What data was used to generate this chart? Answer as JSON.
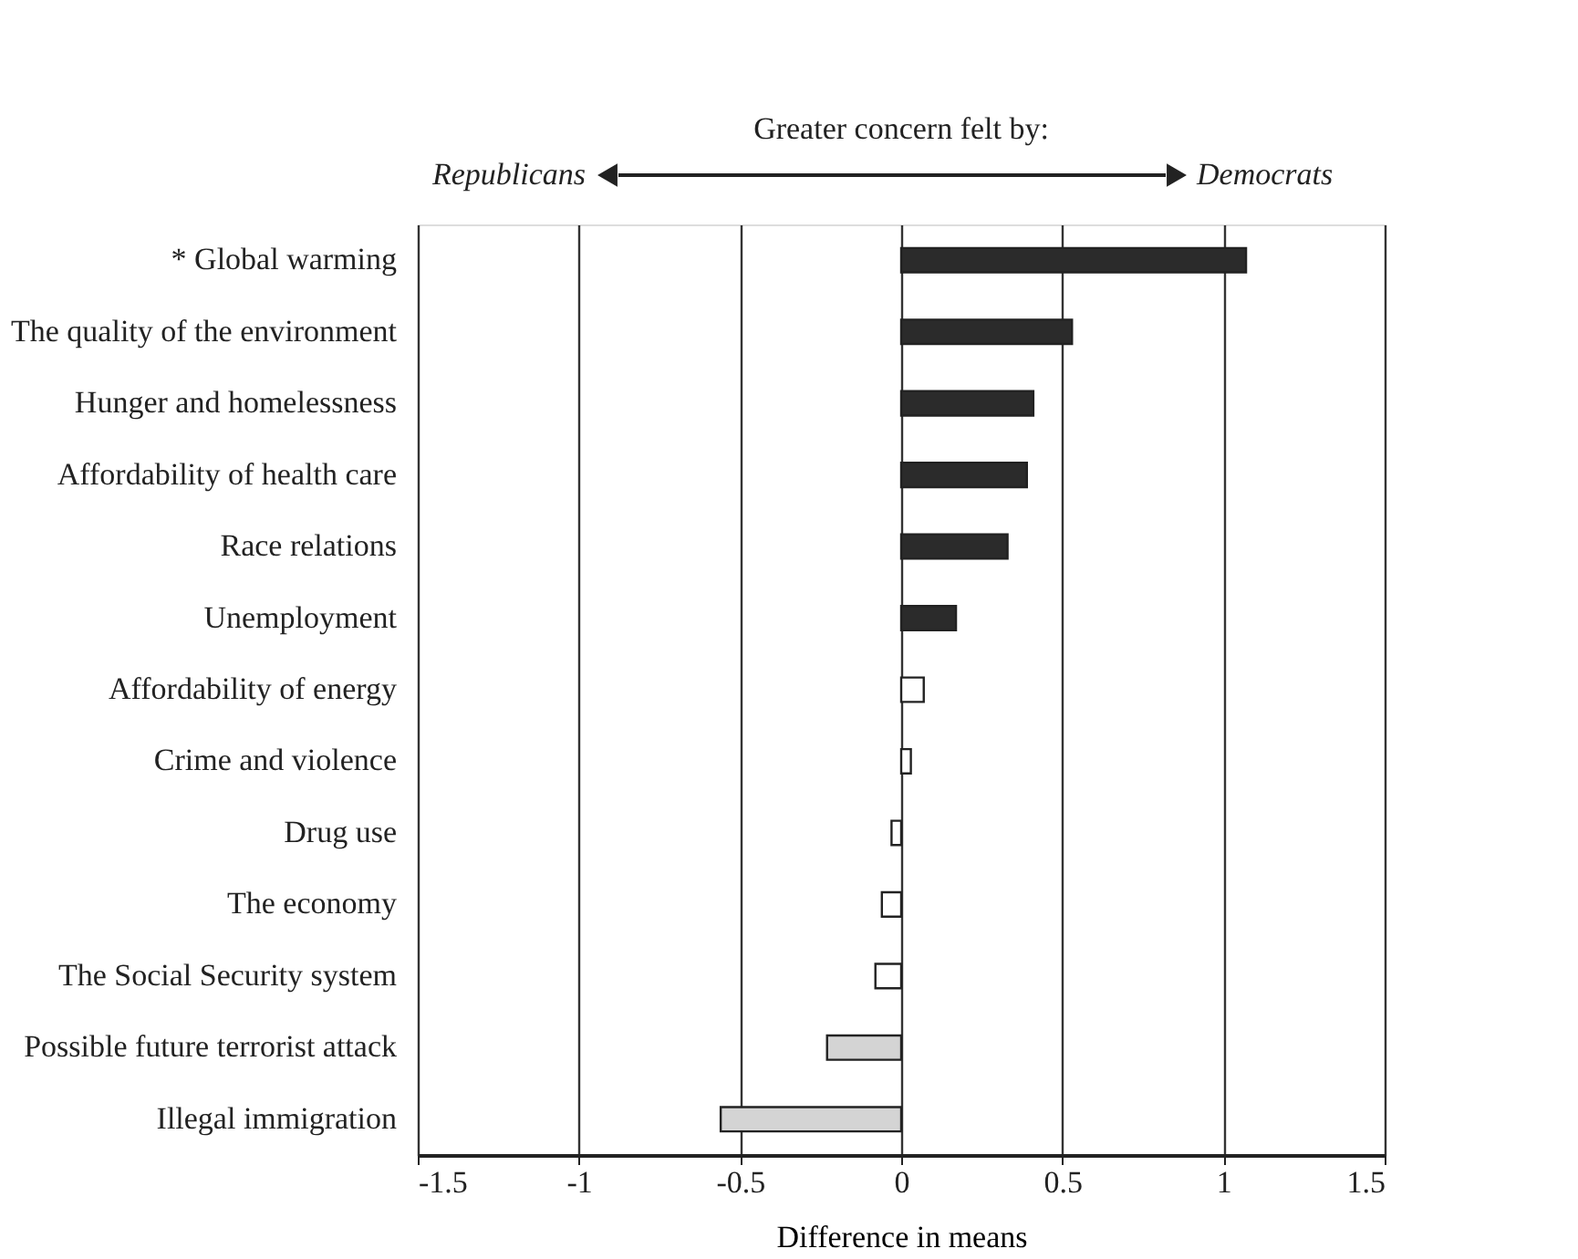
{
  "chart_data": {
    "type": "bar",
    "orientation": "horizontal",
    "xlabel": "Difference in means",
    "annotations": [
      "Greater concern felt by:",
      "Republicans",
      "Democrats"
    ],
    "categories": [
      "* Global warming",
      "The quality of the environment",
      "Hunger and homelessness",
      "Affordability of health care",
      "Race relations",
      "Unemployment",
      "Affordability of energy",
      "Crime and violence",
      "Drug use",
      "The economy",
      "The Social Security system",
      "Possible future terrorist attack",
      "Illegal immigration"
    ],
    "values": [
      1.07,
      0.53,
      0.41,
      0.39,
      0.33,
      0.17,
      0.07,
      0.03,
      -0.03,
      -0.06,
      -0.08,
      -0.23,
      -0.56
    ],
    "colors": [
      "#2b2b2b",
      "#2b2b2b",
      "#2b2b2b",
      "#2b2b2b",
      "#2b2b2b",
      "#2b2b2b",
      "#ffffff",
      "#ffffff",
      "#ffffff",
      "#ffffff",
      "#ffffff",
      "#d4d4d4",
      "#d4d4d4"
    ],
    "xlim": [
      -1.5,
      1.5
    ],
    "xticks": [
      -1.5,
      -1,
      -0.5,
      0,
      0.5,
      1,
      1.5
    ],
    "grid": "x"
  }
}
